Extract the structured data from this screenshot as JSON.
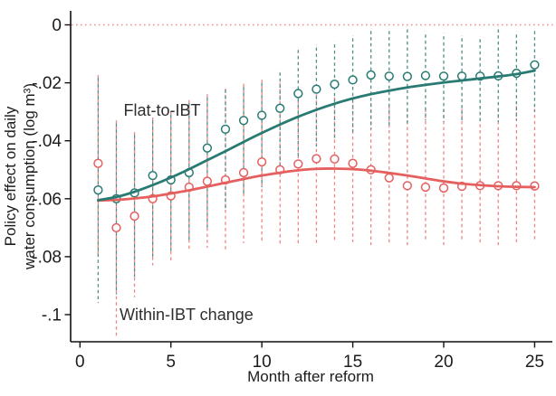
{
  "figure": {
    "background": "#ffffff"
  },
  "annotations": {
    "flat_label": "Flat-to-IBT",
    "within_label": "Within-IBT change"
  },
  "chart_data": {
    "type": "scatter",
    "title": "",
    "xlabel": "Month after reform",
    "ylabel": "Policy effect on daily water consumption (log m³)",
    "ylabel_lines": [
      "Policy effect on daily",
      "water consumption (log m³)"
    ],
    "x_ticks": [
      0,
      5,
      10,
      15,
      20,
      25
    ],
    "y_ticks": {
      "values": [
        0,
        -0.02,
        -0.04,
        -0.06,
        -0.08,
        -0.1
      ],
      "labels": [
        "0",
        "-.02",
        "-.04",
        "-.06",
        "-.08",
        "-.1"
      ]
    },
    "xlim": [
      0,
      26
    ],
    "ylim": [
      -0.115,
      0.005
    ],
    "grid": false,
    "legend_position": "inline-annotations",
    "reference_line": {
      "y": 0,
      "style": "dotted",
      "color": "#f0908e"
    },
    "axis_color": "#111111",
    "x": [
      1,
      2,
      3,
      4,
      5,
      6,
      7,
      8,
      9,
      10,
      11,
      12,
      13,
      14,
      15,
      16,
      17,
      18,
      19,
      20,
      21,
      22,
      23,
      24,
      25
    ],
    "series": [
      {
        "name": "Within-IBT change",
        "marker": "hollow-circle",
        "color": "#e55f5f",
        "bar_color": "#ef8585",
        "values": [
          -0.0478,
          -0.07,
          -0.066,
          -0.06,
          -0.059,
          -0.056,
          -0.054,
          -0.0535,
          -0.051,
          -0.0473,
          -0.05,
          -0.048,
          -0.0462,
          -0.0463,
          -0.0478,
          -0.05,
          -0.0528,
          -0.0555,
          -0.056,
          -0.0563,
          -0.0557,
          -0.0555,
          -0.0555,
          -0.0555,
          -0.0556
        ],
        "ci_upper": [
          -0.0173,
          -0.033,
          -0.037,
          -0.032,
          -0.03,
          -0.026,
          -0.024,
          -0.022,
          -0.0204,
          -0.019,
          -0.02,
          -0.022,
          -0.024,
          -0.025,
          -0.026,
          -0.027,
          -0.028,
          -0.029,
          -0.029,
          -0.029,
          -0.029,
          -0.028,
          -0.029,
          -0.028,
          -0.029
        ],
        "ci_lower": [
          -0.079,
          -0.108,
          -0.094,
          -0.083,
          -0.082,
          -0.078,
          -0.077,
          -0.078,
          -0.0753,
          -0.0753,
          -0.0758,
          -0.0758,
          -0.0763,
          -0.075,
          -0.075,
          -0.076,
          -0.076,
          -0.076,
          -0.075,
          -0.076,
          -0.075,
          -0.076,
          -0.076,
          -0.075,
          -0.075
        ],
        "trend": [
          -0.0606,
          -0.0604,
          -0.0599,
          -0.0592,
          -0.0582,
          -0.0571,
          -0.0558,
          -0.0545,
          -0.0532,
          -0.052,
          -0.051,
          -0.0502,
          -0.0497,
          -0.0496,
          -0.0498,
          -0.0503,
          -0.0511,
          -0.052,
          -0.053,
          -0.054,
          -0.0548,
          -0.0553,
          -0.0557,
          -0.0559,
          -0.056
        ]
      },
      {
        "name": "Flat-to-IBT",
        "marker": "hollow-circle",
        "color": "#2a7a74",
        "bar_color": "#4e8f89",
        "values": [
          -0.057,
          -0.06,
          -0.058,
          -0.052,
          -0.0535,
          -0.051,
          -0.0425,
          -0.036,
          -0.033,
          -0.0312,
          -0.0288,
          -0.0237,
          -0.0222,
          -0.0205,
          -0.019,
          -0.0173,
          -0.0177,
          -0.0178,
          -0.0175,
          -0.0177,
          -0.0177,
          -0.0177,
          -0.0176,
          -0.0167,
          -0.0138
        ],
        "ci_upper": [
          -0.0173,
          -0.033,
          -0.037,
          -0.032,
          -0.03,
          -0.026,
          -0.024,
          -0.0214,
          -0.0204,
          -0.019,
          -0.0154,
          -0.0076,
          -0.0068,
          -0.0057,
          -0.0036,
          -0.0011,
          -0.0011,
          -0.0005,
          -0.0023,
          -0.0029,
          -0.0036,
          -0.0039,
          -0.0005,
          -0.0023,
          -0.0011
        ],
        "ci_lower": [
          -0.096,
          -0.093,
          -0.087,
          -0.08,
          -0.078,
          -0.075,
          -0.07,
          -0.064,
          -0.059,
          -0.056,
          -0.052,
          -0.046,
          -0.042,
          -0.039,
          -0.037,
          -0.036,
          -0.035,
          -0.035,
          -0.033,
          -0.0335,
          -0.033,
          -0.0335,
          -0.0335,
          -0.033,
          -0.03
        ],
        "trend": [
          -0.0605,
          -0.0594,
          -0.0576,
          -0.0553,
          -0.0527,
          -0.0498,
          -0.0467,
          -0.0436,
          -0.0404,
          -0.0373,
          -0.0344,
          -0.0317,
          -0.0293,
          -0.0272,
          -0.0254,
          -0.0239,
          -0.0227,
          -0.0216,
          -0.0207,
          -0.0199,
          -0.0192,
          -0.0185,
          -0.0178,
          -0.017,
          -0.0158
        ]
      }
    ]
  }
}
